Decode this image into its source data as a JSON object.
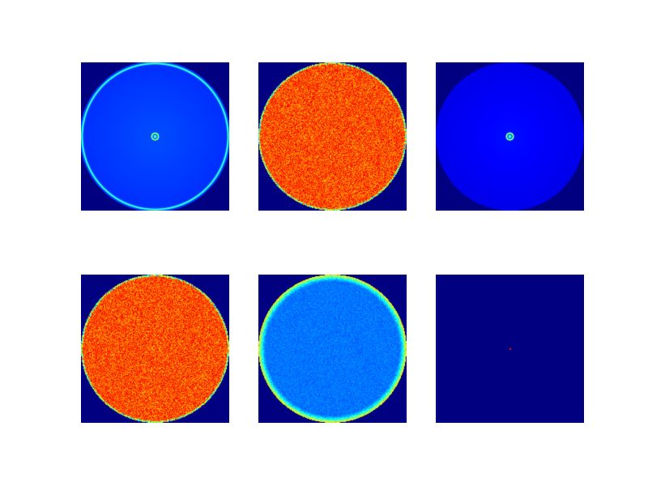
{
  "chart_data": {
    "type": "heatmap",
    "colormap": "jet",
    "grid": "2x3",
    "panels": [
      {
        "id": "panel-1",
        "row": 1,
        "col": 1,
        "pattern": "ring-with-center-peak",
        "background_level": 0.2,
        "center_peak": 1.0,
        "ring_level": 0.3
      },
      {
        "id": "panel-2",
        "row": 1,
        "col": 2,
        "pattern": "noisy-disk",
        "disk_mean": 0.8,
        "disk_noise": 0.06,
        "edge_level": 0.55
      },
      {
        "id": "panel-3",
        "row": 1,
        "col": 3,
        "pattern": "faint-disk-with-center-peak",
        "background_level": 0.13,
        "center_peak": 1.0
      },
      {
        "id": "panel-4",
        "row": 2,
        "col": 1,
        "pattern": "noisy-disk",
        "disk_mean": 0.8,
        "disk_noise": 0.06,
        "edge_level": 0.55
      },
      {
        "id": "panel-5",
        "row": 2,
        "col": 2,
        "pattern": "disk-with-bright-rim",
        "disk_mean": 0.24,
        "disk_noise": 0.02,
        "rim_level": 0.65
      },
      {
        "id": "panel-6",
        "row": 2,
        "col": 3,
        "pattern": "empty-with-center-dot",
        "background_level": 0.0,
        "center_peak": 1.0
      }
    ]
  }
}
